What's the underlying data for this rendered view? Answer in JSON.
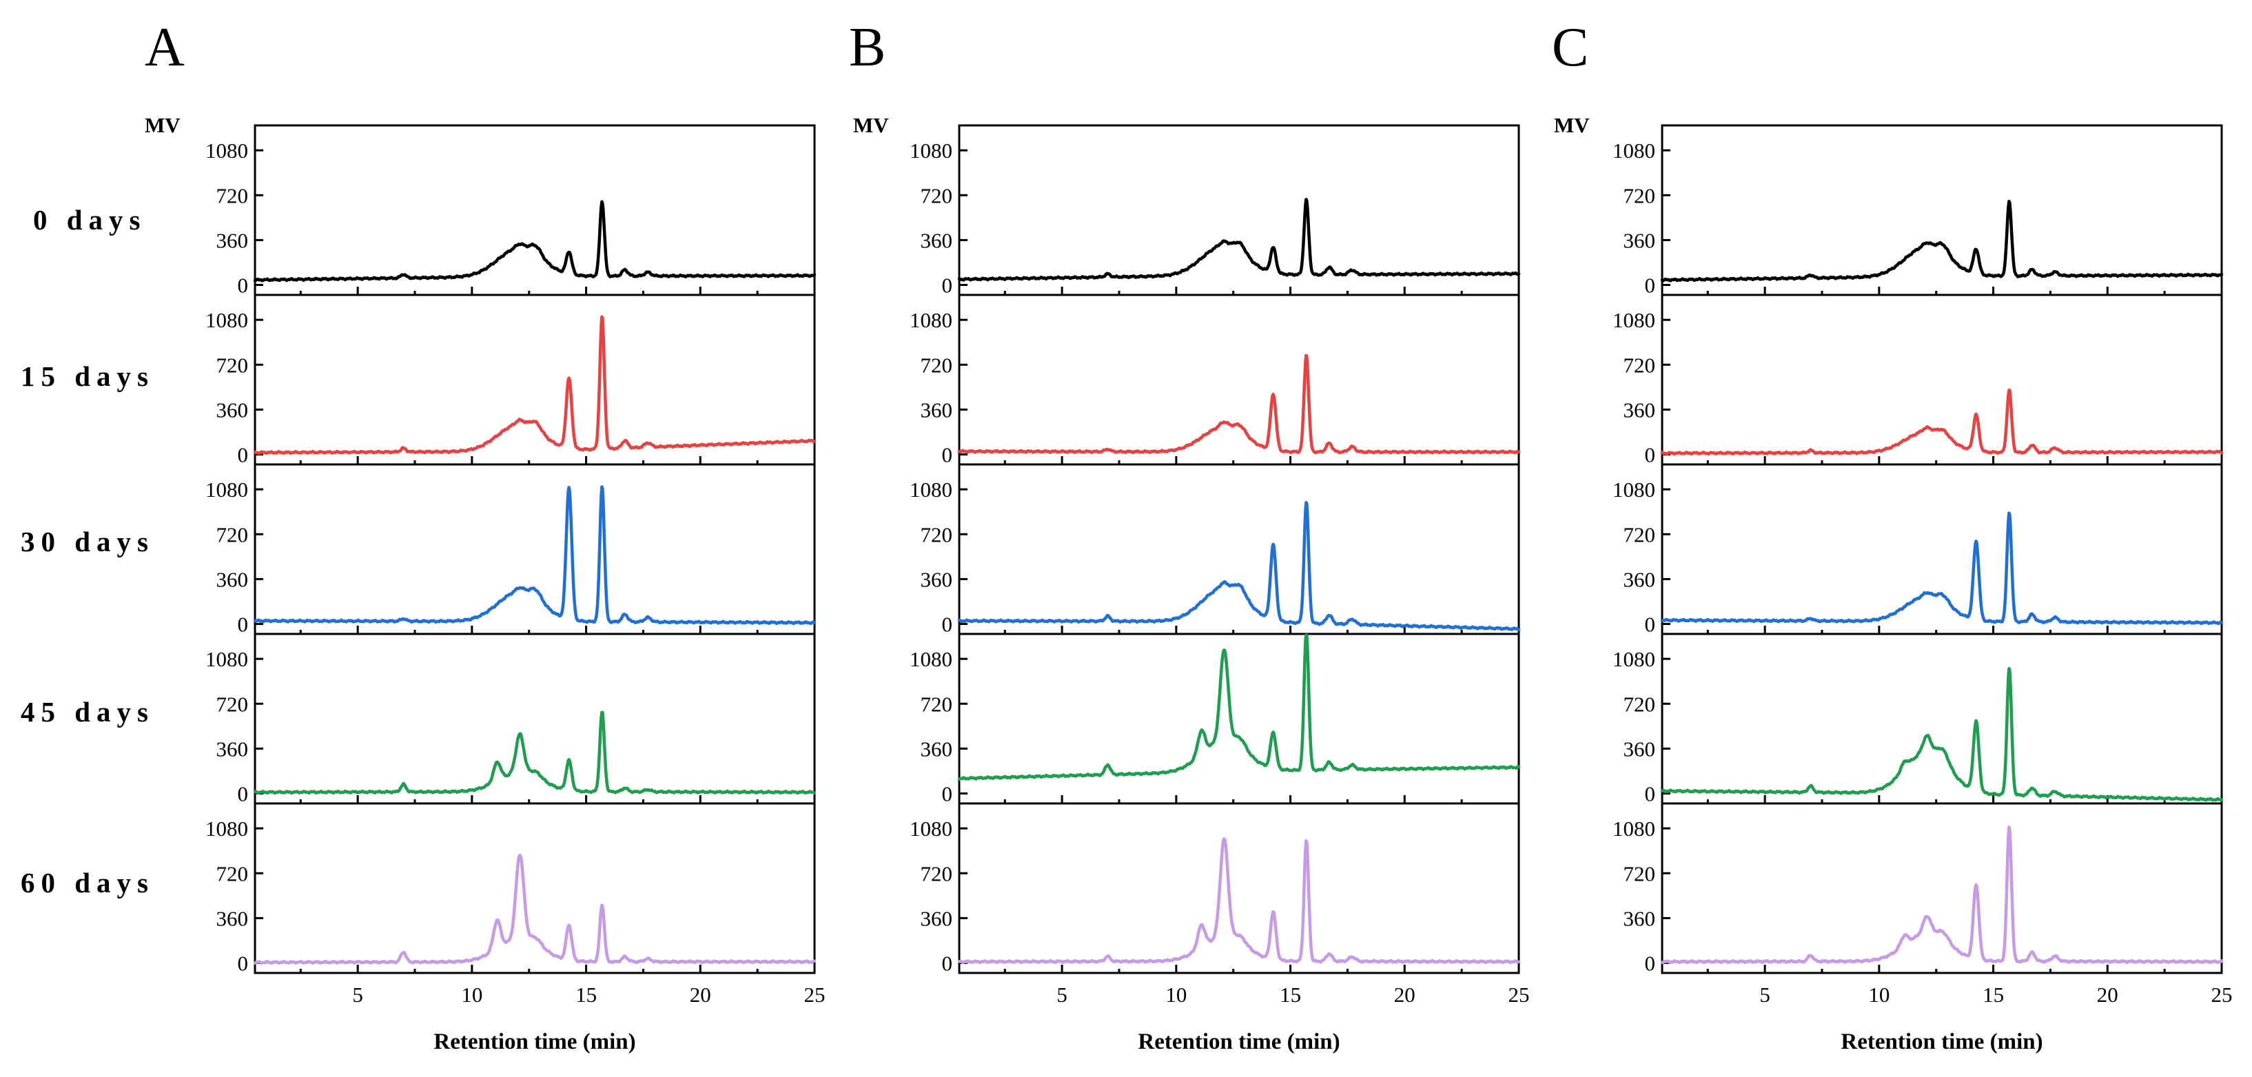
{
  "chart_data": {
    "type": "line",
    "panels": [
      "A",
      "B",
      "C"
    ],
    "rows": [
      "0 days",
      "15 days",
      "30 days",
      "45 days",
      "60 days"
    ],
    "series_colors": [
      "#000000",
      "#e84141",
      "#1f6fd6",
      "#1e9e4e",
      "#c59ae6"
    ],
    "ylabel": "MV",
    "xlabel": "Retention time (min)",
    "xlim": [
      0.5,
      25
    ],
    "ylim": [
      -80,
      1280
    ],
    "y_ticks": [
      0,
      360,
      720,
      1080
    ],
    "x_ticks": [
      5,
      10,
      15,
      20,
      25
    ],
    "peak_positions": [
      7.0,
      11.1,
      12.1,
      14.25,
      15.7
    ],
    "traces": {
      "A": [
        {
          "baseline": [
            40,
            70,
            75
          ],
          "hump": 230,
          "peaks": [
            30,
            0,
            30,
            180,
            600
          ],
          "tail": 50
        },
        {
          "baseline": [
            15,
            25,
            110
          ],
          "hump": 220,
          "peaks": [
            30,
            0,
            30,
            560,
            1060
          ],
          "tail": 60
        },
        {
          "baseline": [
            25,
            20,
            10
          ],
          "hump": 240,
          "peaks": [
            20,
            0,
            30,
            1060,
            1090
          ],
          "tail": 60
        },
        {
          "baseline": [
            10,
            15,
            10
          ],
          "hump": 150,
          "peaks": [
            60,
            150,
            310,
            240,
            640
          ],
          "tail": 30
        },
        {
          "baseline": [
            5,
            10,
            10
          ],
          "hump": 180,
          "peaks": [
            80,
            230,
            680,
            280,
            460
          ],
          "tail": 40
        }
      ],
      "B": [
        {
          "baseline": [
            45,
            80,
            90
          ],
          "hump": 240,
          "peaks": [
            25,
            0,
            30,
            200,
            600
          ],
          "tail": 60
        },
        {
          "baseline": [
            25,
            20,
            20
          ],
          "hump": 200,
          "peaks": [
            20,
            0,
            40,
            450,
            780
          ],
          "tail": 70
        },
        {
          "baseline": [
            25,
            20,
            -40
          ],
          "hump": 270,
          "peaks": [
            40,
            0,
            40,
            600,
            970
          ],
          "tail": 70
        },
        {
          "baseline": [
            120,
            180,
            210
          ],
          "hump": 250,
          "peaks": [
            80,
            190,
            730,
            290,
            1120
          ],
          "tail": 60
        },
        {
          "baseline": [
            10,
            15,
            10
          ],
          "hump": 190,
          "peaks": [
            40,
            180,
            790,
            380,
            970
          ],
          "tail": 60
        }
      ],
      "C": [
        {
          "baseline": [
            40,
            70,
            80
          ],
          "hump": 240,
          "peaks": [
            25,
            0,
            30,
            200,
            600
          ],
          "tail": 50
        },
        {
          "baseline": [
            10,
            15,
            20
          ],
          "hump": 170,
          "peaks": [
            20,
            0,
            30,
            290,
            500
          ],
          "tail": 60
        },
        {
          "baseline": [
            30,
            20,
            10
          ],
          "hump": 200,
          "peaks": [
            20,
            0,
            30,
            630,
            880
          ],
          "tail": 60
        },
        {
          "baseline": [
            20,
            0,
            -50
          ],
          "hump": 330,
          "peaks": [
            50,
            60,
            130,
            560,
            1020
          ],
          "tail": 60
        },
        {
          "baseline": [
            10,
            15,
            10
          ],
          "hump": 220,
          "peaks": [
            50,
            80,
            140,
            600,
            1080
          ],
          "tail": 70
        }
      ]
    }
  }
}
